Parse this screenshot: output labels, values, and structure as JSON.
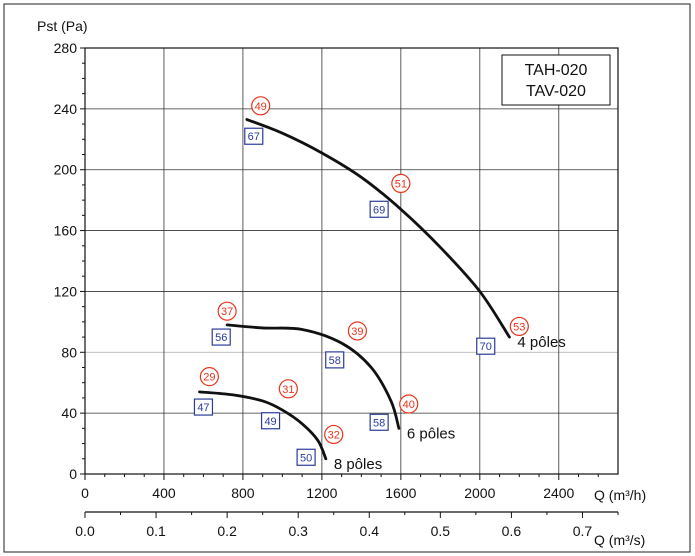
{
  "chart_data": {
    "type": "line",
    "ylabel": "Pst (Pa)",
    "xlabel": "Q (m³/h)",
    "x2label": "Q (m³/s)",
    "xlim": [
      0,
      2700
    ],
    "ylim": [
      0,
      280
    ],
    "x_ticks": [
      0,
      400,
      800,
      1200,
      1600,
      2000,
      2400
    ],
    "y_ticks": [
      0,
      40,
      80,
      120,
      160,
      200,
      240,
      280
    ],
    "x2_ticks": [
      "0.0",
      "0.1",
      "0.2",
      "0.3",
      "0.4",
      "0.5",
      "0.6",
      "0.7"
    ],
    "grid": true,
    "legend_box": [
      "TAH-020",
      "TAV-020"
    ],
    "series": [
      {
        "name": "4 pôles",
        "x": [
          820,
          1000,
          1200,
          1400,
          1600,
          1800,
          2000,
          2150
        ],
        "y": [
          233,
          224,
          211,
          195,
          174,
          149,
          120,
          90
        ],
        "circle_labels": [
          {
            "text": "49",
            "x": 890,
            "y": 242
          },
          {
            "text": "51",
            "x": 1600,
            "y": 191
          },
          {
            "text": "53",
            "x": 2200,
            "y": 97
          }
        ],
        "square_labels": [
          {
            "text": "67",
            "x": 855,
            "y": 222
          },
          {
            "text": "69",
            "x": 1490,
            "y": 174
          },
          {
            "text": "70",
            "x": 2030,
            "y": 84
          }
        ]
      },
      {
        "name": "6 pôles",
        "x": [
          720,
          900,
          1100,
          1300,
          1450,
          1550,
          1590
        ],
        "y": [
          98,
          96,
          95,
          86,
          70,
          48,
          30
        ],
        "circle_labels": [
          {
            "text": "37",
            "x": 720,
            "y": 107
          },
          {
            "text": "39",
            "x": 1380,
            "y": 94
          },
          {
            "text": "40",
            "x": 1640,
            "y": 46
          }
        ],
        "square_labels": [
          {
            "text": "56",
            "x": 690,
            "y": 90
          },
          {
            "text": "58",
            "x": 1265,
            "y": 75
          },
          {
            "text": "58",
            "x": 1490,
            "y": 34
          }
        ]
      },
      {
        "name": "8 pôles",
        "x": [
          580,
          750,
          900,
          1000,
          1100,
          1180,
          1220
        ],
        "y": [
          54,
          52,
          48,
          42,
          33,
          22,
          10
        ],
        "circle_labels": [
          {
            "text": "29",
            "x": 630,
            "y": 64
          },
          {
            "text": "31",
            "x": 1030,
            "y": 56
          },
          {
            "text": "32",
            "x": 1260,
            "y": 26
          }
        ],
        "square_labels": [
          {
            "text": "47",
            "x": 600,
            "y": 44
          },
          {
            "text": "49",
            "x": 940,
            "y": 35
          },
          {
            "text": "50",
            "x": 1120,
            "y": 11
          }
        ]
      }
    ]
  }
}
